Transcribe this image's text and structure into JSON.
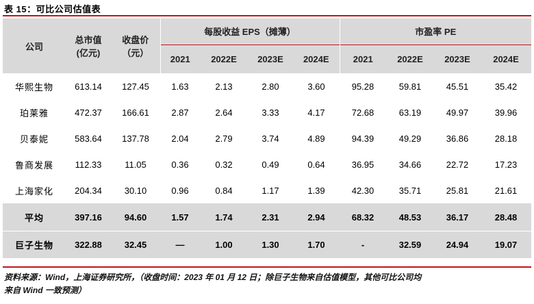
{
  "title": "表 15：可比公司估值表",
  "header": {
    "company": "公司",
    "market_cap": [
      "总市值",
      "(亿元)"
    ],
    "close_price": [
      "收盘价",
      "（元）"
    ],
    "eps_group": "每股收益 EPS（摊薄）",
    "pe_group": "市盈率 PE",
    "years": [
      "2021",
      "2022E",
      "2023E",
      "2024E"
    ]
  },
  "rows": [
    {
      "name": "华熙生物",
      "cap": "613.14",
      "price": "127.45",
      "eps": [
        "1.63",
        "2.13",
        "2.80",
        "3.60"
      ],
      "pe": [
        "95.28",
        "59.81",
        "45.51",
        "35.42"
      ]
    },
    {
      "name": "珀莱雅",
      "cap": "472.37",
      "price": "166.61",
      "eps": [
        "2.87",
        "2.64",
        "3.33",
        "4.17"
      ],
      "pe": [
        "72.68",
        "63.19",
        "49.97",
        "39.96"
      ]
    },
    {
      "name": "贝泰妮",
      "cap": "583.64",
      "price": "137.78",
      "eps": [
        "2.04",
        "2.79",
        "3.74",
        "4.89"
      ],
      "pe": [
        "94.39",
        "49.29",
        "36.86",
        "28.18"
      ]
    },
    {
      "name": "鲁商发展",
      "cap": "112.33",
      "price": "11.05",
      "eps": [
        "0.36",
        "0.32",
        "0.49",
        "0.64"
      ],
      "pe": [
        "36.95",
        "34.66",
        "22.72",
        "17.23"
      ]
    },
    {
      "name": "上海家化",
      "cap": "204.34",
      "price": "30.10",
      "eps": [
        "0.96",
        "0.84",
        "1.17",
        "1.39"
      ],
      "pe": [
        "42.30",
        "35.71",
        "25.81",
        "21.61"
      ]
    }
  ],
  "average": {
    "name": "平均",
    "cap": "397.16",
    "price": "94.60",
    "eps": [
      "1.57",
      "1.74",
      "2.31",
      "2.94"
    ],
    "pe": [
      "68.32",
      "48.53",
      "36.17",
      "28.48"
    ]
  },
  "reference": {
    "name": "巨子生物",
    "cap": "322.88",
    "price": "32.45",
    "eps": [
      "—",
      "1.00",
      "1.30",
      "1.70"
    ],
    "pe": [
      "-",
      "32.59",
      "24.94",
      "19.07"
    ]
  },
  "source": [
    "资料来源：Wind，上海证券研究所，（收盘时间：2023 年 01 月 12 日；除巨子生物来自估值模型，其他可比公司均",
    "来自 Wind 一致预测）"
  ]
}
